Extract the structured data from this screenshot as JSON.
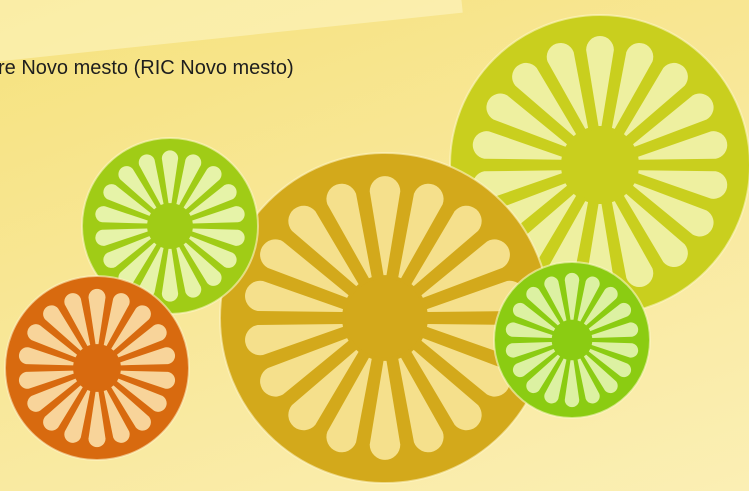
{
  "slide": {
    "caption": "re Novo mesto (RIC Novo mesto)"
  }
}
